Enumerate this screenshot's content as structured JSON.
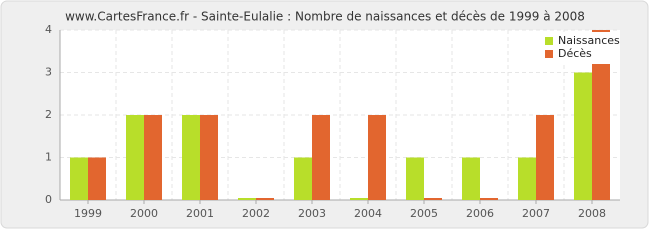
{
  "chart_data": {
    "type": "bar",
    "title": "www.CartesFrance.fr - Sainte-Eulalie : Nombre de naissances et décès de 1999 à 2008",
    "categories": [
      "1999",
      "2000",
      "2001",
      "2002",
      "2003",
      "2004",
      "2005",
      "2006",
      "2007",
      "2008"
    ],
    "series": [
      {
        "name": "Naissances",
        "color": "#b8de2a",
        "values": [
          1,
          2,
          2,
          0,
          1,
          0,
          1,
          1,
          1,
          3
        ]
      },
      {
        "name": "Décès",
        "color": "#e2662f",
        "values": [
          1,
          2,
          2,
          0,
          2,
          2,
          0,
          0,
          2,
          4
        ]
      }
    ],
    "ylim": [
      0,
      4
    ],
    "yticks": [
      0,
      1,
      2,
      3,
      4
    ],
    "grid": true,
    "legend": "top-right"
  }
}
